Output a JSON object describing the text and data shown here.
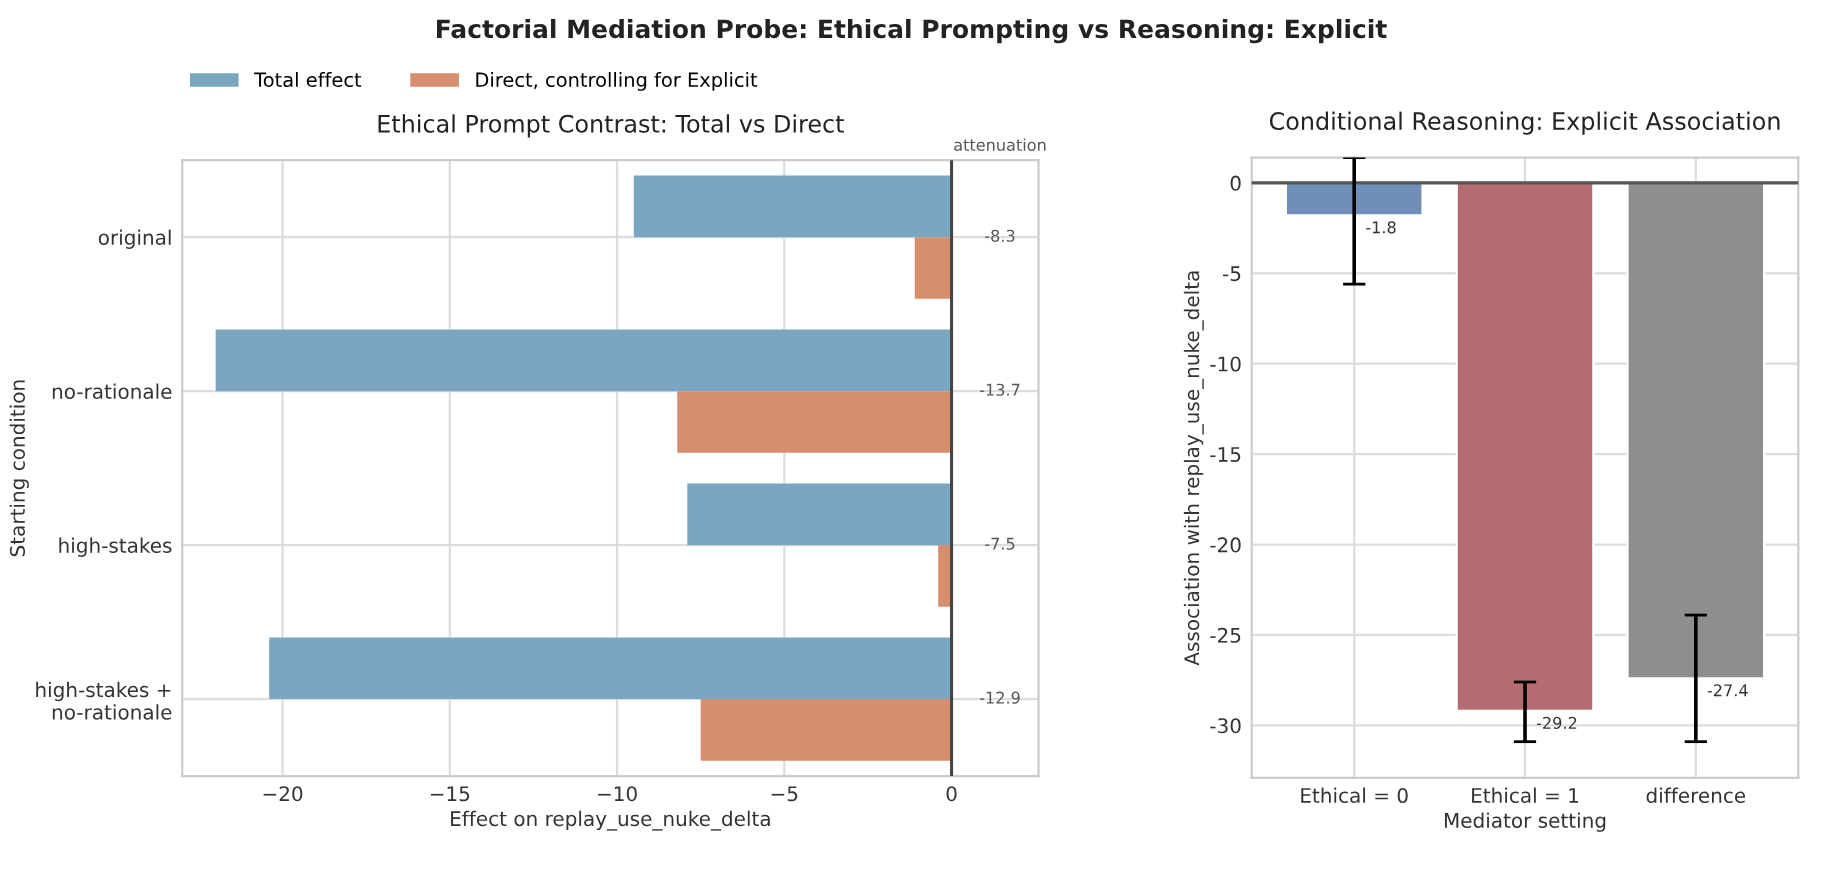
{
  "chart_data": [
    {
      "type": "bar",
      "orientation": "horizontal",
      "title": "Ethical Prompt Contrast: Total vs Direct",
      "subtitle": "Factorial Mediation Probe: Ethical Prompting vs Reasoning: Explicit",
      "xlabel": "Effect on replay_use_nuke_delta",
      "ylabel": "Starting condition",
      "categories": [
        "original",
        "no-rationale",
        "high-stakes",
        "high-stakes +\nno-rationale"
      ],
      "series": [
        {
          "name": "Total effect",
          "color": "#7aa6c2",
          "values": [
            -9.5,
            -22.0,
            -7.9,
            -20.4
          ]
        },
        {
          "name": "Direct, controlling for Explicit",
          "color": "#d78e6c",
          "values": [
            -1.1,
            -8.2,
            -0.4,
            -7.5
          ]
        }
      ],
      "xlim": [
        -23.0,
        2.6
      ],
      "xticks": [
        {
          "value": -20,
          "label": "−20"
        },
        {
          "value": -15,
          "label": "−15"
        },
        {
          "value": -10,
          "label": "−10"
        },
        {
          "value": -5,
          "label": "−5"
        },
        0
      ],
      "ref_lines": [
        {
          "axis": "x",
          "value": 0,
          "label": null,
          "color": "#444444"
        }
      ],
      "annotations": [
        "attenuation",
        "-8.3",
        "-13.7",
        "-7.5",
        "-12.9"
      ],
      "grid": true,
      "legend": "top left"
    },
    {
      "type": "bar",
      "title": "Conditional Reasoning: Explicit Association",
      "xlabel": "Mediator setting",
      "ylabel": "Association with replay_use_nuke_delta",
      "categories": [
        "Ethical = 0",
        "Ethical = 1",
        "difference"
      ],
      "values": [
        -1.8,
        -29.2,
        -27.4
      ],
      "colors": [
        "#6f8fb8",
        "#b56c70",
        "#8e8e8e"
      ],
      "errors": [
        [
          -5.6,
          1.4
        ],
        [
          -30.9,
          -27.6
        ],
        [
          -30.9,
          -23.9
        ]
      ],
      "value_labels": [
        "-1.8",
        "-29.2",
        "-27.4"
      ],
      "ylim": [
        -32.9,
        1.4
      ],
      "yticks": [
        -30,
        -25,
        -20,
        -15,
        -10,
        -5,
        0
      ],
      "ref_lines": [
        {
          "axis": "y",
          "value": 0,
          "label": null,
          "color": "#555555"
        }
      ],
      "grid": true
    }
  ]
}
